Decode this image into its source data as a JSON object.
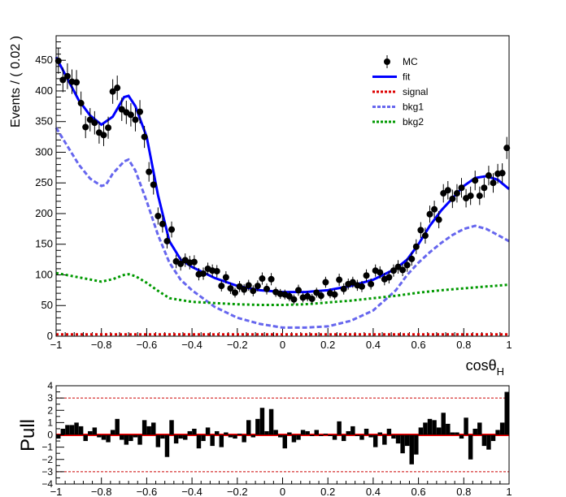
{
  "chart_data": [
    {
      "type": "scatter",
      "ylabel": "Events / ( 0.02 )",
      "xlabel_main": "cosθ",
      "xlabel_sub": "H",
      "xlim": [
        -1,
        1
      ],
      "ylim": [
        0,
        490
      ],
      "x_ticks": [
        "−1",
        "−0.8",
        "−0.6",
        "−0.4",
        "−0.2",
        "0",
        "0.2",
        "0.4",
        "0.6",
        "0.8",
        "1"
      ],
      "x_tick_values": [
        -1,
        -0.8,
        -0.6,
        -0.4,
        -0.2,
        0,
        0.2,
        0.4,
        0.6,
        0.8,
        1
      ],
      "y_ticks": [
        "0",
        "50",
        "100",
        "150",
        "200",
        "250",
        "300",
        "350",
        "400",
        "450"
      ],
      "y_tick_values": [
        0,
        50,
        100,
        150,
        200,
        250,
        300,
        350,
        400,
        450
      ],
      "legend": [
        {
          "label": "MC",
          "color": "#000000",
          "style": "marker"
        },
        {
          "label": "fit",
          "color": "#0000ff",
          "style": "solid"
        },
        {
          "label": "signal",
          "color": "#dd0000",
          "style": "dotted"
        },
        {
          "label": "bkg1",
          "color": "#6666ee",
          "style": "dashed"
        },
        {
          "label": "bkg2",
          "color": "#009900",
          "style": "dotted"
        }
      ],
      "legend_position": "top-right",
      "series": [
        {
          "name": "MC",
          "x": [
            -0.99,
            -0.97,
            -0.95,
            -0.93,
            -0.91,
            -0.89,
            -0.87,
            -0.85,
            -0.83,
            -0.81,
            -0.79,
            -0.77,
            -0.75,
            -0.73,
            -0.71,
            -0.69,
            -0.67,
            -0.65,
            -0.63,
            -0.61,
            -0.59,
            -0.57,
            -0.55,
            -0.53,
            -0.51,
            -0.49,
            -0.47,
            -0.45,
            -0.43,
            -0.41,
            -0.39,
            -0.37,
            -0.35,
            -0.33,
            -0.31,
            -0.29,
            -0.27,
            -0.25,
            -0.23,
            -0.21,
            -0.19,
            -0.17,
            -0.15,
            -0.13,
            -0.11,
            -0.09,
            -0.07,
            -0.05,
            -0.03,
            -0.01,
            0.01,
            0.03,
            0.05,
            0.07,
            0.09,
            0.11,
            0.13,
            0.15,
            0.17,
            0.19,
            0.21,
            0.23,
            0.25,
            0.27,
            0.29,
            0.31,
            0.33,
            0.35,
            0.37,
            0.39,
            0.41,
            0.43,
            0.45,
            0.47,
            0.49,
            0.51,
            0.53,
            0.55,
            0.57,
            0.59,
            0.61,
            0.63,
            0.65,
            0.67,
            0.69,
            0.71,
            0.73,
            0.75,
            0.77,
            0.79,
            0.81,
            0.83,
            0.85,
            0.87,
            0.89,
            0.91,
            0.93,
            0.95,
            0.97,
            0.99
          ],
          "y": [
            449,
            418,
            424,
            415,
            414,
            380,
            341,
            353,
            348,
            332,
            328,
            340,
            399,
            405,
            370,
            365,
            361,
            353,
            366,
            325,
            268,
            247,
            196,
            183,
            155,
            174,
            122,
            118,
            124,
            120,
            121,
            101,
            102,
            110,
            107,
            106,
            82,
            96,
            78,
            71,
            81,
            76,
            83,
            74,
            82,
            94,
            77,
            93,
            72,
            69,
            68,
            65,
            60,
            75,
            63,
            65,
            61,
            71,
            66,
            88,
            70,
            68,
            92,
            77,
            85,
            88,
            83,
            81,
            99,
            85,
            107,
            104,
            93,
            96,
            107,
            113,
            108,
            116,
            126,
            146,
            173,
            164,
            199,
            207,
            190,
            233,
            238,
            224,
            233,
            242,
            225,
            229,
            254,
            229,
            242,
            262,
            250,
            265,
            266,
            307
          ],
          "errors": [
            21,
            20,
            21,
            20,
            20,
            19,
            18,
            19,
            19,
            18,
            18,
            18,
            20,
            20,
            19,
            19,
            19,
            19,
            19,
            18,
            16,
            16,
            14,
            14,
            12,
            13,
            11,
            11,
            11,
            11,
            11,
            10,
            10,
            10,
            10,
            10,
            9,
            10,
            9,
            8,
            9,
            9,
            9,
            9,
            9,
            10,
            9,
            10,
            8,
            8,
            8,
            8,
            8,
            9,
            8,
            8,
            8,
            8,
            8,
            9,
            8,
            8,
            10,
            9,
            9,
            9,
            9,
            9,
            10,
            9,
            10,
            10,
            10,
            10,
            10,
            11,
            10,
            11,
            11,
            12,
            13,
            13,
            14,
            14,
            14,
            15,
            15,
            15,
            15,
            16,
            15,
            15,
            16,
            15,
            16,
            16,
            16,
            16,
            16,
            18
          ]
        },
        {
          "name": "fit",
          "x": [
            -1,
            -0.95,
            -0.9,
            -0.85,
            -0.8,
            -0.75,
            -0.7,
            -0.68,
            -0.65,
            -0.6,
            -0.55,
            -0.5,
            -0.45,
            -0.4,
            -0.3,
            -0.2,
            -0.1,
            0,
            0.1,
            0.2,
            0.3,
            0.4,
            0.5,
            0.55,
            0.6,
            0.65,
            0.7,
            0.75,
            0.8,
            0.85,
            0.9,
            0.95,
            1
          ],
          "y": [
            455,
            420,
            385,
            360,
            345,
            358,
            390,
            392,
            375,
            325,
            230,
            155,
            125,
            113,
            95,
            82,
            75,
            72,
            72,
            75,
            82,
            92,
            110,
            125,
            150,
            180,
            205,
            225,
            245,
            258,
            261,
            255,
            240
          ]
        },
        {
          "name": "signal",
          "x": [
            -1,
            1
          ],
          "y": [
            3,
            3
          ]
        },
        {
          "name": "bkg1",
          "x": [
            -1,
            -0.95,
            -0.9,
            -0.85,
            -0.8,
            -0.78,
            -0.75,
            -0.7,
            -0.68,
            -0.65,
            -0.6,
            -0.55,
            -0.5,
            -0.45,
            -0.4,
            -0.3,
            -0.2,
            -0.1,
            0,
            0.1,
            0.2,
            0.3,
            0.4,
            0.5,
            0.55,
            0.6,
            0.65,
            0.7,
            0.75,
            0.8,
            0.85,
            0.9,
            0.95,
            1
          ],
          "y": [
            340,
            310,
            280,
            257,
            245,
            247,
            265,
            285,
            288,
            270,
            220,
            165,
            120,
            92,
            75,
            48,
            30,
            20,
            14,
            14,
            16,
            25,
            42,
            75,
            100,
            120,
            137,
            152,
            165,
            175,
            180,
            175,
            165,
            155
          ]
        },
        {
          "name": "bkg2",
          "x": [
            -1,
            -0.9,
            -0.8,
            -0.75,
            -0.7,
            -0.68,
            -0.65,
            -0.6,
            -0.55,
            -0.5,
            -0.4,
            -0.3,
            -0.2,
            -0.1,
            0,
            0.1,
            0.2,
            0.3,
            0.4,
            0.5,
            0.6,
            0.7,
            0.8,
            0.9,
            1
          ],
          "y": [
            103,
            96,
            89,
            93,
            100,
            101,
            98,
            87,
            74,
            62,
            56,
            54,
            52,
            51,
            51,
            52,
            55,
            58,
            62,
            66,
            71,
            75,
            78,
            81,
            84
          ]
        }
      ]
    },
    {
      "type": "bar",
      "ylabel": "Pull",
      "xlim": [
        -1,
        1
      ],
      "ylim": [
        -4,
        4
      ],
      "x_ticks": [
        "−1",
        "−0.8",
        "−0.6",
        "−0.4",
        "−0.2",
        "0",
        "0.2",
        "0.4",
        "0.6",
        "0.8",
        "1"
      ],
      "x_tick_values": [
        -1,
        -0.8,
        -0.6,
        -0.4,
        -0.2,
        0,
        0.2,
        0.4,
        0.6,
        0.8,
        1
      ],
      "y_ticks": [
        "−4",
        "−3",
        "−2",
        "−1",
        "0",
        "1",
        "2",
        "3",
        "4"
      ],
      "y_tick_values": [
        -4,
        -3,
        -2,
        -1,
        0,
        1,
        2,
        3,
        4
      ],
      "reference_lines": [
        -3,
        0,
        3
      ],
      "series": [
        {
          "name": "Pull",
          "x": [
            -0.99,
            -0.97,
            -0.95,
            -0.93,
            -0.91,
            -0.89,
            -0.87,
            -0.85,
            -0.83,
            -0.81,
            -0.79,
            -0.77,
            -0.75,
            -0.73,
            -0.71,
            -0.69,
            -0.67,
            -0.65,
            -0.63,
            -0.61,
            -0.59,
            -0.57,
            -0.55,
            -0.53,
            -0.51,
            -0.49,
            -0.47,
            -0.45,
            -0.43,
            -0.41,
            -0.39,
            -0.37,
            -0.35,
            -0.33,
            -0.31,
            -0.29,
            -0.27,
            -0.25,
            -0.23,
            -0.21,
            -0.19,
            -0.17,
            -0.15,
            -0.13,
            -0.11,
            -0.09,
            -0.07,
            -0.05,
            -0.03,
            -0.01,
            0.01,
            0.03,
            0.05,
            0.07,
            0.09,
            0.11,
            0.13,
            0.15,
            0.17,
            0.19,
            0.21,
            0.23,
            0.25,
            0.27,
            0.29,
            0.31,
            0.33,
            0.35,
            0.37,
            0.39,
            0.41,
            0.43,
            0.45,
            0.47,
            0.49,
            0.51,
            0.53,
            0.55,
            0.57,
            0.59,
            0.61,
            0.63,
            0.65,
            0.67,
            0.69,
            0.71,
            0.73,
            0.75,
            0.77,
            0.79,
            0.81,
            0.83,
            0.85,
            0.87,
            0.89,
            0.91,
            0.93,
            0.95,
            0.97,
            0.99
          ],
          "values": [
            -0.3,
            0.5,
            0.8,
            0.8,
            1.0,
            0.7,
            -0.5,
            0.3,
            0.6,
            -0.2,
            -0.4,
            -0.6,
            0.4,
            1.3,
            -0.4,
            -0.8,
            -0.5,
            -0.2,
            -0.8,
            1.2,
            0.7,
            1.0,
            -1.0,
            -0.3,
            -1.8,
            1.2,
            -0.7,
            -0.3,
            -0.4,
            0.3,
            0.5,
            -1.1,
            -0.5,
            0.6,
            -0.9,
            0.3,
            -1.0,
            0.2,
            -0.2,
            -0.3,
            0.1,
            -0.6,
            1.2,
            -0.2,
            1.3,
            2.2,
            0.3,
            2.1,
            0.4,
            -0.2,
            -1.1,
            0.2,
            -0.6,
            -0.4,
            0.4,
            0.3,
            -0.1,
            0.4,
            -0.1,
            0.1,
            -0.1,
            -0.4,
            1.1,
            -0.5,
            0.3,
            0.7,
            -0.1,
            -0.4,
            0.5,
            -0.2,
            -1.0,
            0.2,
            -0.8,
            0.5,
            -0.3,
            -0.7,
            -1.5,
            -0.9,
            -2.4,
            -1.6,
            0.6,
            1.0,
            1.3,
            1.2,
            0.6,
            1.8,
            0.9,
            0.2,
            0.2,
            -0.3,
            1.4,
            -2.0,
            0.5,
            1.0,
            -0.9,
            -1.2,
            -0.5,
            0.4,
            1.0,
            3.5
          ]
        }
      ]
    }
  ]
}
